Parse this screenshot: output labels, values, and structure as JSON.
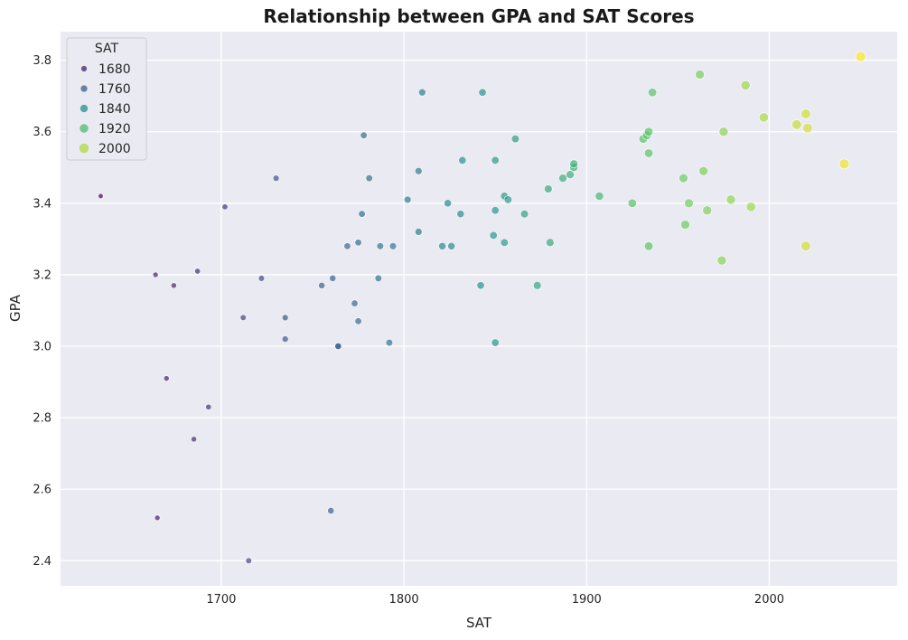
{
  "chart_data": {
    "type": "scatter",
    "title": "Relationship between GPA and SAT Scores",
    "xlabel": "SAT",
    "ylabel": "GPA",
    "xlim": [
      1612,
      2070
    ],
    "ylim": [
      2.33,
      3.88
    ],
    "xticks": [
      "1700",
      "1800",
      "1900",
      "2000"
    ],
    "yticks": [
      "2.4",
      "2.6",
      "2.8",
      "3.0",
      "3.2",
      "3.4",
      "3.6",
      "3.8"
    ],
    "grid": true,
    "hue": "SAT",
    "size": "SAT",
    "colormap": "viridis",
    "legend": {
      "title": "SAT",
      "position": "top-left",
      "entries": [
        "1680",
        "1760",
        "1840",
        "1920",
        "2000"
      ]
    },
    "background": "#eaeaf2",
    "points": [
      {
        "x": 1634,
        "y": 3.42
      },
      {
        "x": 1664,
        "y": 3.2
      },
      {
        "x": 1665,
        "y": 2.52
      },
      {
        "x": 1670,
        "y": 2.91
      },
      {
        "x": 1674,
        "y": 3.17
      },
      {
        "x": 1685,
        "y": 2.74
      },
      {
        "x": 1687,
        "y": 3.21
      },
      {
        "x": 1693,
        "y": 2.83
      },
      {
        "x": 1702,
        "y": 3.39
      },
      {
        "x": 1712,
        "y": 3.08
      },
      {
        "x": 1715,
        "y": 2.4
      },
      {
        "x": 1722,
        "y": 3.19
      },
      {
        "x": 1730,
        "y": 3.47
      },
      {
        "x": 1735,
        "y": 3.02
      },
      {
        "x": 1735,
        "y": 3.08
      },
      {
        "x": 1755,
        "y": 3.17
      },
      {
        "x": 1760,
        "y": 2.54
      },
      {
        "x": 1761,
        "y": 3.19
      },
      {
        "x": 1764,
        "y": 3.0
      },
      {
        "x": 1764,
        "y": 3.0
      },
      {
        "x": 1769,
        "y": 3.28
      },
      {
        "x": 1773,
        "y": 3.12
      },
      {
        "x": 1775,
        "y": 3.29
      },
      {
        "x": 1775,
        "y": 3.07
      },
      {
        "x": 1777,
        "y": 3.37
      },
      {
        "x": 1778,
        "y": 3.59
      },
      {
        "x": 1781,
        "y": 3.47
      },
      {
        "x": 1786,
        "y": 3.19
      },
      {
        "x": 1787,
        "y": 3.28
      },
      {
        "x": 1792,
        "y": 3.01
      },
      {
        "x": 1794,
        "y": 3.28
      },
      {
        "x": 1802,
        "y": 3.41
      },
      {
        "x": 1808,
        "y": 3.49
      },
      {
        "x": 1808,
        "y": 3.32
      },
      {
        "x": 1810,
        "y": 3.71
      },
      {
        "x": 1821,
        "y": 3.28
      },
      {
        "x": 1824,
        "y": 3.4
      },
      {
        "x": 1826,
        "y": 3.28
      },
      {
        "x": 1831,
        "y": 3.37
      },
      {
        "x": 1832,
        "y": 3.52
      },
      {
        "x": 1842,
        "y": 3.17
      },
      {
        "x": 1843,
        "y": 3.71
      },
      {
        "x": 1849,
        "y": 3.31
      },
      {
        "x": 1850,
        "y": 3.52
      },
      {
        "x": 1850,
        "y": 3.38
      },
      {
        "x": 1850,
        "y": 3.01
      },
      {
        "x": 1855,
        "y": 3.42
      },
      {
        "x": 1855,
        "y": 3.29
      },
      {
        "x": 1857,
        "y": 3.41
      },
      {
        "x": 1861,
        "y": 3.58
      },
      {
        "x": 1866,
        "y": 3.37
      },
      {
        "x": 1873,
        "y": 3.17
      },
      {
        "x": 1879,
        "y": 3.44
      },
      {
        "x": 1880,
        "y": 3.29
      },
      {
        "x": 1887,
        "y": 3.47
      },
      {
        "x": 1891,
        "y": 3.48
      },
      {
        "x": 1893,
        "y": 3.5
      },
      {
        "x": 1893,
        "y": 3.51
      },
      {
        "x": 1907,
        "y": 3.42
      },
      {
        "x": 1925,
        "y": 3.4
      },
      {
        "x": 1931,
        "y": 3.58
      },
      {
        "x": 1933,
        "y": 3.59
      },
      {
        "x": 1934,
        "y": 3.6
      },
      {
        "x": 1934,
        "y": 3.54
      },
      {
        "x": 1934,
        "y": 3.28
      },
      {
        "x": 1936,
        "y": 3.71
      },
      {
        "x": 1953,
        "y": 3.47
      },
      {
        "x": 1954,
        "y": 3.34
      },
      {
        "x": 1956,
        "y": 3.4
      },
      {
        "x": 1962,
        "y": 3.76
      },
      {
        "x": 1964,
        "y": 3.49
      },
      {
        "x": 1966,
        "y": 3.38
      },
      {
        "x": 1974,
        "y": 3.24
      },
      {
        "x": 1975,
        "y": 3.6
      },
      {
        "x": 1979,
        "y": 3.41
      },
      {
        "x": 1987,
        "y": 3.73
      },
      {
        "x": 1990,
        "y": 3.39
      },
      {
        "x": 1997,
        "y": 3.64
      },
      {
        "x": 2015,
        "y": 3.62
      },
      {
        "x": 2020,
        "y": 3.65
      },
      {
        "x": 2020,
        "y": 3.28
      },
      {
        "x": 2021,
        "y": 3.61
      },
      {
        "x": 2041,
        "y": 3.51
      },
      {
        "x": 2050,
        "y": 3.81
      }
    ]
  }
}
